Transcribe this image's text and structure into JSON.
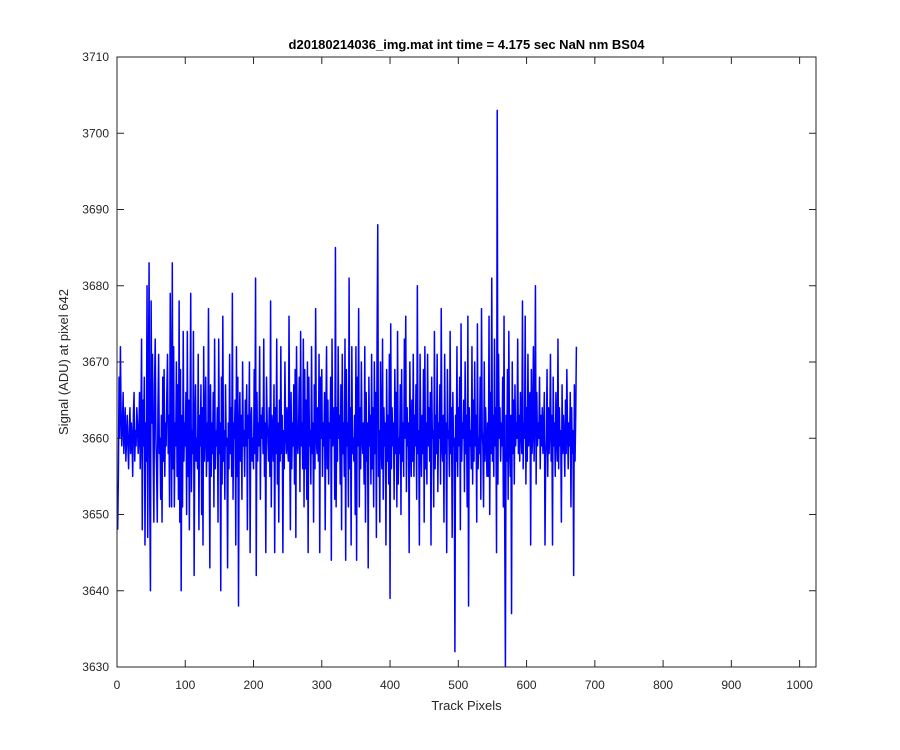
{
  "chart_data": {
    "type": "line",
    "title": "d20180214036_img.mat int time = 4.175 sec  NaN nm BS04",
    "xlabel": "Track Pixels",
    "ylabel": "Signal (ADU) at pixel 642",
    "xlim": [
      0,
      1024
    ],
    "ylim": [
      3630,
      3710
    ],
    "xticks": [
      0,
      100,
      200,
      300,
      400,
      500,
      600,
      700,
      800,
      900,
      1000
    ],
    "yticks": [
      3630,
      3640,
      3650,
      3660,
      3670,
      3680,
      3690,
      3700,
      3710
    ],
    "grid": false,
    "line_color": "#0000ff",
    "series": [
      {
        "x_start": 1,
        "x_step": 1,
        "y": [
          3648,
          3655,
          3668,
          3660,
          3672,
          3663,
          3659,
          3662,
          3666,
          3658,
          3661,
          3664,
          3657,
          3660,
          3663,
          3659,
          3656,
          3661,
          3664,
          3658,
          3662,
          3660,
          3655,
          3663,
          3666,
          3657,
          3661,
          3659,
          3664,
          3662,
          3658,
          3660,
          3666,
          3656,
          3662,
          3673,
          3648,
          3665,
          3659,
          3668,
          3646,
          3662,
          3657,
          3680,
          3647,
          3666,
          3683,
          3652,
          3640,
          3678,
          3662,
          3671,
          3658,
          3649,
          3667,
          3673,
          3660,
          3656,
          3649,
          3664,
          3671,
          3658,
          3660,
          3652,
          3663,
          3649,
          3668,
          3657,
          3669,
          3655,
          3662,
          3659,
          3666,
          3671,
          3658,
          3663,
          3651,
          3679,
          3665,
          3651,
          3683,
          3656,
          3672,
          3651,
          3662,
          3659,
          3670,
          3655,
          3667,
          3652,
          3678,
          3649,
          3669,
          3640,
          3663,
          3651,
          3674,
          3657,
          3662,
          3659,
          3666,
          3650,
          3674,
          3655,
          3665,
          3648,
          3662,
          3679,
          3653,
          3661,
          3658,
          3674,
          3642,
          3662,
          3667,
          3657,
          3660,
          3656,
          3671,
          3648,
          3663,
          3659,
          3667,
          3650,
          3664,
          3646,
          3672,
          3657,
          3661,
          3668,
          3655,
          3662,
          3657,
          3677,
          3660,
          3643,
          3667,
          3655,
          3662,
          3658,
          3666,
          3651,
          3673,
          3656,
          3661,
          3659,
          3664,
          3649,
          3673,
          3658,
          3662,
          3640,
          3668,
          3654,
          3676,
          3657,
          3661,
          3652,
          3667,
          3659,
          3660,
          3643,
          3662,
          3656,
          3671,
          3658,
          3664,
          3655,
          3679,
          3652,
          3662,
          3660,
          3665,
          3646,
          3672,
          3655,
          3668,
          3638,
          3661,
          3666,
          3657,
          3663,
          3652,
          3670,
          3659,
          3661,
          3655,
          3665,
          3659,
          3667,
          3648,
          3663,
          3660,
          3670,
          3645,
          3662,
          3664,
          3657,
          3660,
          3656,
          3669,
          3658,
          3681,
          3642,
          3666,
          3657,
          3662,
          3659,
          3672,
          3652,
          3663,
          3660,
          3664,
          3658,
          3673,
          3655,
          3662,
          3645,
          3668,
          3662,
          3660,
          3657,
          3664,
          3655,
          3678,
          3651,
          3663,
          3661,
          3657,
          3667,
          3645,
          3664,
          3658,
          3673,
          3654,
          3662,
          3649,
          3665,
          3657,
          3672,
          3658,
          3663,
          3645,
          3661,
          3656,
          3670,
          3661,
          3658,
          3664,
          3659,
          3657,
          3676,
          3660,
          3648,
          3666,
          3656,
          3662,
          3659,
          3667,
          3654,
          3669,
          3647,
          3672,
          3660,
          3658,
          3661,
          3668,
          3653,
          3674,
          3659,
          3662,
          3656,
          3673,
          3651,
          3669,
          3656,
          3665,
          3652,
          3670,
          3645,
          3668,
          3659,
          3661,
          3654,
          3672,
          3658,
          3662,
          3649,
          3667,
          3656,
          3677,
          3660,
          3658,
          3664,
          3657,
          3671,
          3645,
          3668,
          3660,
          3669,
          3655,
          3662,
          3659,
          3666,
          3648,
          3663,
          3672,
          3656,
          3665,
          3654,
          3662,
          3660,
          3668,
          3644,
          3673,
          3659,
          3661,
          3664,
          3652,
          3685,
          3651,
          3664,
          3657,
          3672,
          3660,
          3663,
          3654,
          3667,
          3648,
          3671,
          3658,
          3662,
          3655,
          3673,
          3644,
          3669,
          3659,
          3662,
          3651,
          3681,
          3656,
          3664,
          3646,
          3672,
          3658,
          3660,
          3657,
          3663,
          3650,
          3672,
          3644,
          3668,
          3659,
          3677,
          3651,
          3664,
          3656,
          3670,
          3660,
          3658,
          3662,
          3654,
          3672,
          3649,
          3666,
          3657,
          3662,
          3643,
          3668,
          3659,
          3663,
          3654,
          3671,
          3656,
          3664,
          3651,
          3670,
          3658,
          3666,
          3647,
          3673,
          3688,
          3655,
          3661,
          3649,
          3670,
          3660,
          3656,
          3673,
          3652,
          3664,
          3659,
          3662,
          3646,
          3669,
          3657,
          3663,
          3654,
          3671,
          3639,
          3675,
          3656,
          3664,
          3659,
          3662,
          3652,
          3669,
          3658,
          3666,
          3651,
          3674,
          3654,
          3660,
          3658,
          3667,
          3650,
          3669,
          3657,
          3662,
          3655,
          3673,
          3660,
          3676,
          3653,
          3664,
          3659,
          3662,
          3645,
          3670,
          3660,
          3655,
          3665,
          3657,
          3671,
          3655,
          3663,
          3659,
          3667,
          3652,
          3680,
          3658,
          3661,
          3646,
          3671,
          3660,
          3655,
          3663,
          3658,
          3669,
          3649,
          3672,
          3656,
          3662,
          3654,
          3671,
          3659,
          3664,
          3657,
          3666,
          3646,
          3668,
          3660,
          3661,
          3651,
          3674,
          3656,
          3663,
          3658,
          3671,
          3653,
          3662,
          3660,
          3667,
          3654,
          3677,
          3659,
          3657,
          3663,
          3649,
          3671,
          3658,
          3662,
          3645,
          3669,
          3660,
          3661,
          3655,
          3674,
          3658,
          3664,
          3647,
          3666,
          3659,
          3660,
          3632,
          3663,
          3657,
          3672,
          3655,
          3664,
          3659,
          3668,
          3648,
          3675,
          3657,
          3662,
          3660,
          3665,
          3653,
          3670,
          3658,
          3663,
          3651,
          3676,
          3638,
          3664,
          3659,
          3661,
          3656,
          3672,
          3654,
          3665,
          3657,
          3670,
          3659,
          3663,
          3649,
          3675,
          3656,
          3660,
          3658,
          3668,
          3652,
          3677,
          3661,
          3659,
          3651,
          3670,
          3657,
          3664,
          3660,
          3655,
          3662,
          3655,
          3676,
          3650,
          3666,
          3658,
          3681,
          3657,
          3663,
          3655,
          3673,
          3659,
          3664,
          3645,
          3703,
          3654,
          3671,
          3660,
          3664,
          3657,
          3662,
          3659,
          3668,
          3651,
          3676,
          3648,
          3630,
          3663,
          3657,
          3669,
          3652,
          3674,
          3660,
          3655,
          3663,
          3637,
          3670,
          3658,
          3665,
          3654,
          3667,
          3659,
          3662,
          3660,
          3673,
          3658,
          3663,
          3657,
          3666,
          3661,
          3658,
          3678,
          3656,
          3662,
          3660,
          3676,
          3654,
          3664,
          3657,
          3671,
          3659,
          3665,
          3666,
          3646,
          3669,
          3658,
          3661,
          3672,
          3657,
          3663,
          3680,
          3654,
          3666,
          3659,
          3662,
          3660,
          3668,
          3656,
          3663,
          3659,
          3664,
          3658,
          3661,
          3666,
          3646,
          3657,
          3660,
          3669,
          3655,
          3664,
          3658,
          3661,
          3671,
          3657,
          3663,
          3646,
          3668,
          3659,
          3662,
          3655,
          3666,
          3660,
          3657,
          3673,
          3656,
          3664,
          3659,
          3661,
          3649,
          3667,
          3658,
          3663,
          3660,
          3655,
          3665,
          3658,
          3669,
          3661,
          3656,
          3662,
          3659,
          3666,
          3651,
          3664,
          3658,
          3661,
          3642,
          3667,
          3657,
          3663,
          3672
        ]
      }
    ]
  }
}
